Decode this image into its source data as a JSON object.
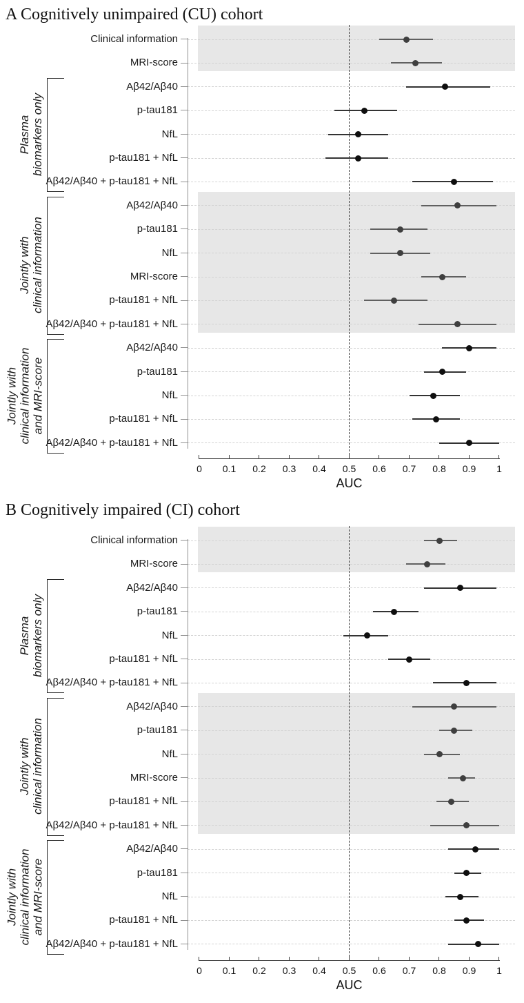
{
  "figure_title": "Forest plots of AUC by model and cohort",
  "colors": {
    "band_background": "#e7e7e7",
    "row_guide": "#d2d2d2",
    "reference_line": "#3a3a3a",
    "axis": "#3c3c3c",
    "y_axis": "#8f8f8f",
    "point_on_band": "#3f3f3f",
    "ci_on_band": "#606060",
    "point_on_white": "#0f0f0f",
    "ci_on_white": "#333333"
  },
  "chart_data": [
    {
      "type": "scatter",
      "variant": "forest-plot-with-ci",
      "title": "A Cognitively unimpaired (CU) cohort",
      "xlabel": "AUC",
      "xlim": [
        0,
        1
      ],
      "xtick_labels": [
        "0",
        "0.1",
        "0.2",
        "0.3",
        "0.4",
        "0.5",
        "0.6",
        "0.7",
        "0.8",
        "0.9",
        "1"
      ],
      "xtick_values": [
        0,
        0.1,
        0.2,
        0.3,
        0.4,
        0.5,
        0.6,
        0.7,
        0.8,
        0.9,
        1
      ],
      "reference_x": 0.5,
      "grid": "dashed horizontal row guides",
      "legend": "none",
      "groups": [
        {
          "label": "",
          "label_lines": [],
          "shaded": true,
          "rows": [
            {
              "label": "Clinical information",
              "auc": 0.69,
              "ci": [
                0.6,
                0.78
              ]
            },
            {
              "label": "MRI-score",
              "auc": 0.72,
              "ci": [
                0.64,
                0.81
              ]
            }
          ]
        },
        {
          "label": "Plasma biomarkers only",
          "label_lines": [
            "Plasma",
            "biomarkers only"
          ],
          "shaded": false,
          "rows": [
            {
              "label": "Aβ42/Aβ40",
              "auc": 0.82,
              "ci": [
                0.69,
                0.97
              ]
            },
            {
              "label": "p-tau181",
              "auc": 0.55,
              "ci": [
                0.45,
                0.66
              ]
            },
            {
              "label": "NfL",
              "auc": 0.53,
              "ci": [
                0.43,
                0.63
              ]
            },
            {
              "label": "p-tau181 + NfL",
              "auc": 0.53,
              "ci": [
                0.42,
                0.63
              ]
            },
            {
              "label": "Aβ42/Aβ40 + p-tau181 + NfL",
              "auc": 0.85,
              "ci": [
                0.71,
                0.98
              ]
            }
          ]
        },
        {
          "label": "Jointly with clinical information",
          "label_lines": [
            "Jointly with",
            "clinical information"
          ],
          "shaded": true,
          "rows": [
            {
              "label": "Aβ42/Aβ40",
              "auc": 0.86,
              "ci": [
                0.74,
                0.99
              ]
            },
            {
              "label": "p-tau181",
              "auc": 0.67,
              "ci": [
                0.57,
                0.76
              ]
            },
            {
              "label": "NfL",
              "auc": 0.67,
              "ci": [
                0.57,
                0.77
              ]
            },
            {
              "label": "MRI-score",
              "auc": 0.81,
              "ci": [
                0.74,
                0.89
              ]
            },
            {
              "label": "p-tau181 + NfL",
              "auc": 0.65,
              "ci": [
                0.55,
                0.76
              ]
            },
            {
              "label": "Aβ42/Aβ40 + p-tau181 + NfL",
              "auc": 0.86,
              "ci": [
                0.73,
                0.99
              ]
            }
          ]
        },
        {
          "label": "Jointly with clinical information and MRI-score",
          "label_lines": [
            "Jointly with",
            "clinical information",
            "and MRI-score"
          ],
          "shaded": false,
          "rows": [
            {
              "label": "Aβ42/Aβ40",
              "auc": 0.9,
              "ci": [
                0.81,
                0.99
              ]
            },
            {
              "label": "p-tau181",
              "auc": 0.81,
              "ci": [
                0.75,
                0.89
              ]
            },
            {
              "label": "NfL",
              "auc": 0.78,
              "ci": [
                0.7,
                0.87
              ]
            },
            {
              "label": "p-tau181 + NfL",
              "auc": 0.79,
              "ci": [
                0.71,
                0.87
              ]
            },
            {
              "label": "Aβ42/Aβ40 + p-tau181 + NfL",
              "auc": 0.9,
              "ci": [
                0.8,
                1.0
              ]
            }
          ]
        }
      ]
    },
    {
      "type": "scatter",
      "variant": "forest-plot-with-ci",
      "title": "B Cognitively impaired (CI) cohort",
      "xlabel": "AUC",
      "xlim": [
        0,
        1
      ],
      "xtick_labels": [
        "0",
        "0.1",
        "0.2",
        "0.3",
        "0.4",
        "0.5",
        "0.6",
        "0.7",
        "0.8",
        "0.9",
        "1"
      ],
      "xtick_values": [
        0,
        0.1,
        0.2,
        0.3,
        0.4,
        0.5,
        0.6,
        0.7,
        0.8,
        0.9,
        1
      ],
      "reference_x": 0.5,
      "grid": "dashed horizontal row guides",
      "legend": "none",
      "groups": [
        {
          "label": "",
          "label_lines": [],
          "shaded": true,
          "rows": [
            {
              "label": "Clinical information",
              "auc": 0.8,
              "ci": [
                0.75,
                0.86
              ]
            },
            {
              "label": "MRI-score",
              "auc": 0.76,
              "ci": [
                0.69,
                0.82
              ]
            }
          ]
        },
        {
          "label": "Plasma biomarkers only",
          "label_lines": [
            "Plasma",
            "biomarkers only"
          ],
          "shaded": false,
          "rows": [
            {
              "label": "Aβ42/Aβ40",
              "auc": 0.87,
              "ci": [
                0.75,
                0.99
              ]
            },
            {
              "label": "p-tau181",
              "auc": 0.65,
              "ci": [
                0.58,
                0.73
              ]
            },
            {
              "label": "NfL",
              "auc": 0.56,
              "ci": [
                0.48,
                0.63
              ]
            },
            {
              "label": "p-tau181 + NfL",
              "auc": 0.7,
              "ci": [
                0.63,
                0.77
              ]
            },
            {
              "label": "Aβ42/Aβ40 + p-tau181 + NfL",
              "auc": 0.89,
              "ci": [
                0.78,
                0.99
              ]
            }
          ]
        },
        {
          "label": "Jointly with clinical information",
          "label_lines": [
            "Jointly with",
            "clinical information"
          ],
          "shaded": true,
          "rows": [
            {
              "label": "Aβ42/Aβ40",
              "auc": 0.85,
              "ci": [
                0.71,
                0.99
              ]
            },
            {
              "label": "p-tau181",
              "auc": 0.85,
              "ci": [
                0.8,
                0.91
              ]
            },
            {
              "label": "NfL",
              "auc": 0.8,
              "ci": [
                0.75,
                0.87
              ]
            },
            {
              "label": "MRI-score",
              "auc": 0.88,
              "ci": [
                0.83,
                0.92
              ]
            },
            {
              "label": "p-tau181 + NfL",
              "auc": 0.84,
              "ci": [
                0.79,
                0.9
              ]
            },
            {
              "label": "Aβ42/Aβ40 + p-tau181 + NfL",
              "auc": 0.89,
              "ci": [
                0.77,
                1.0
              ]
            }
          ]
        },
        {
          "label": "Jointly with clinical information and MRI-score",
          "label_lines": [
            "Jointly with",
            "clinical information",
            "and MRI-score"
          ],
          "shaded": false,
          "rows": [
            {
              "label": "Aβ42/Aβ40",
              "auc": 0.92,
              "ci": [
                0.83,
                1.0
              ]
            },
            {
              "label": "p-tau181",
              "auc": 0.89,
              "ci": [
                0.85,
                0.94
              ]
            },
            {
              "label": "NfL",
              "auc": 0.87,
              "ci": [
                0.82,
                0.93
              ]
            },
            {
              "label": "p-tau181 + NfL",
              "auc": 0.89,
              "ci": [
                0.85,
                0.95
              ]
            },
            {
              "label": "Aβ42/Aβ40 + p-tau181 + NfL",
              "auc": 0.93,
              "ci": [
                0.83,
                1.0
              ]
            }
          ]
        }
      ]
    }
  ]
}
